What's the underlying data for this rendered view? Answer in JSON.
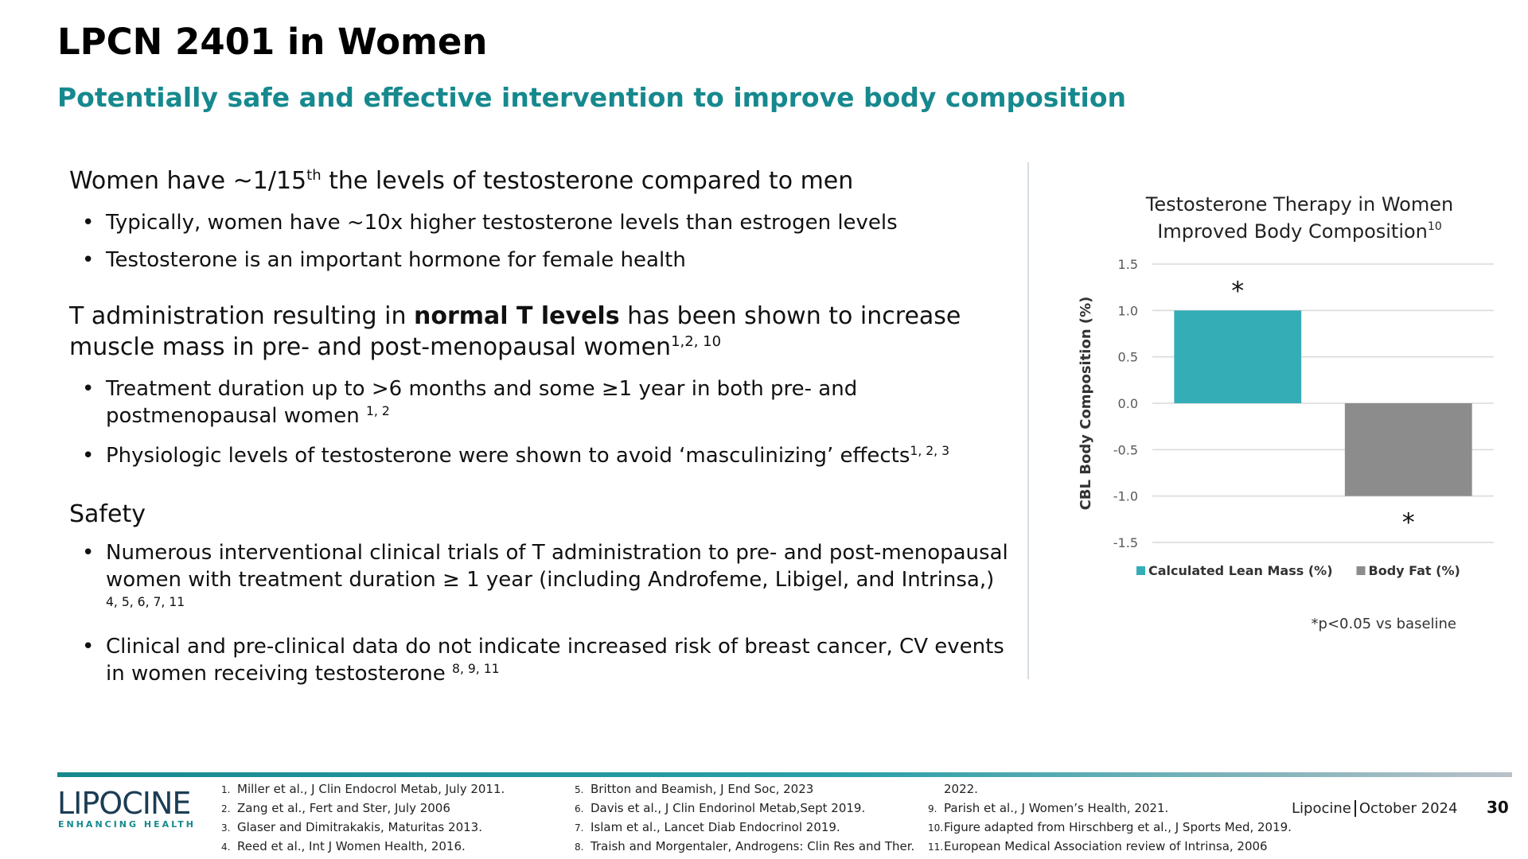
{
  "header": {
    "title": "LPCN 2401 in Women",
    "subtitle": "Potentially safe and effective intervention to improve body composition"
  },
  "sections": [
    {
      "heading": [
        {
          "text": "Women have ~1/15"
        },
        {
          "text": "th",
          "style": "sup"
        },
        {
          "text": " the levels of testosterone compared to men"
        }
      ],
      "bullets": [
        [
          {
            "text": "Typically, women have ~10x higher testosterone levels than estrogen levels"
          }
        ],
        [
          {
            "text": "Testosterone is an important hormone for female health"
          }
        ]
      ]
    },
    {
      "heading": [
        {
          "text": "T administration resulting in "
        },
        {
          "text": "normal T levels",
          "style": "bold"
        },
        {
          "text": " has been shown to increase muscle mass in pre- and post-menopausal women"
        },
        {
          "text": "1,2, 10",
          "style": "sup"
        }
      ],
      "bullets": [
        [
          {
            "text": "Treatment duration up to >6 months and some ≥1 year in both pre- and postmenopausal women "
          },
          {
            "text": "1, 2",
            "style": "sup"
          }
        ],
        [
          {
            "text": "Physiologic levels of testosterone were shown to avoid ‘masculinizing’ effects"
          },
          {
            "text": "1, 2, 3",
            "style": "sup"
          }
        ]
      ]
    },
    {
      "heading": [
        {
          "text": "Safety"
        }
      ],
      "bullets": [
        [
          {
            "text": "Numerous interventional clinical trials of T administration to pre- and post-menopausal women with treatment duration ≥ 1 year (including Androfeme, Libigel, and Intrinsa,) "
          },
          {
            "text": "4, 5, 6, 7, 11",
            "style": "sup"
          }
        ],
        [
          {
            "text": "Clinical and pre-clinical data do not indicate increased risk of breast cancer, CV events in women receiving testosterone "
          },
          {
            "text": "8, 9, 11",
            "style": "sup"
          }
        ]
      ]
    }
  ],
  "chart_data": {
    "type": "bar",
    "title": [
      "Testosterone Therapy in Women",
      "Improved Body Composition"
    ],
    "title_ref": "10",
    "y_label": "CBL Body Composition (%)",
    "categories": [
      null
    ],
    "series": [
      {
        "name": "Calculated Lean Mass (%)",
        "color": "#35adb6",
        "values": [
          1.0
        ]
      },
      {
        "name": "Body Fat (%)",
        "color": "#8c8c8c",
        "values": [
          -1.0
        ]
      }
    ],
    "annotations": [
      "*",
      "*"
    ],
    "ylim": [
      -1.5,
      1.5
    ],
    "yticks": [
      1.5,
      {
        "value": 1,
        "label": "1.0"
      },
      0.5,
      {
        "value": 0,
        "label": "0.0"
      },
      -0.5,
      {
        "value": -1,
        "label": "-1.0"
      },
      -1.5
    ],
    "grid": true,
    "legend": "bottom",
    "note": "*p<0.05 vs baseline"
  },
  "footer": {
    "logo": "LIPOCINE",
    "logo_tagline": "ENHANCING HEALTH",
    "references": [
      {
        "number": "1.",
        "text": "Miller et al., J Clin Endocrol Metab, July 2011."
      },
      {
        "number": "2.",
        "text": "Zang et al., Fert and Ster, July 2006"
      },
      {
        "number": "3.",
        "text": "Glaser and Dimitrakakis, Maturitas 2013."
      },
      {
        "number": "4.",
        "text": "Reed et al., Int J Women Health, 2016."
      },
      {
        "number": "5.",
        "text": "Britton and Beamish, J End Soc, 2023"
      },
      {
        "number": "6.",
        "text": "Davis et al., J Clin Endorinol Metab,Sept 2019."
      },
      {
        "number": "7.",
        "text": "Islam et al., Lancet Diab Endocrinol 2019."
      },
      {
        "number": "8.",
        "text": "Traish and Morgentaler, Androgens: Clin Res and Ther.",
        "continued": "2022."
      },
      {
        "number": "9.",
        "text": "Parish et al., J Women’s Health, 2021."
      },
      {
        "number": "10.",
        "text": "Figure adapted from Hirschberg et al., J Sports Med, 2019."
      },
      {
        "number": "11.",
        "text": "European Medical Association review of Intrinsa, 2006"
      }
    ],
    "company": "Lipocine",
    "date": "October 2024",
    "page": "30"
  }
}
